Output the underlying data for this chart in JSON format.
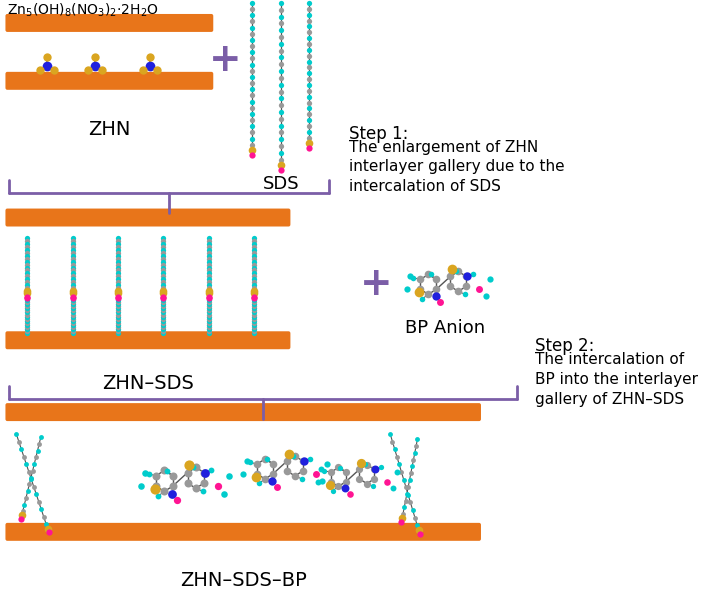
{
  "background_color": "#ffffff",
  "orange_color": "#E8751A",
  "purple_color": "#7B5EA7",
  "label_zhn": "ZHN",
  "label_sds": "SDS",
  "label_zhn_sds": "ZHN–SDS",
  "label_bp": "BP Anion",
  "label_zhn_sds_bp": "ZHN–SDS–BP",
  "step1_title": "Step 1:",
  "step1_text": "The enlargement of ZHN\ninterlayer gallery due to the\nintercalation of SDS",
  "step2_title": "Step 2:",
  "step2_text": "The intercalation of\nBP into the interlayer\ngallery of ZHN–SDS",
  "cyan": "#00CCCC",
  "gray": "#999999",
  "gold": "#DAA520",
  "magenta": "#FF1493",
  "navy": "#2020DD",
  "dark": "#333333"
}
